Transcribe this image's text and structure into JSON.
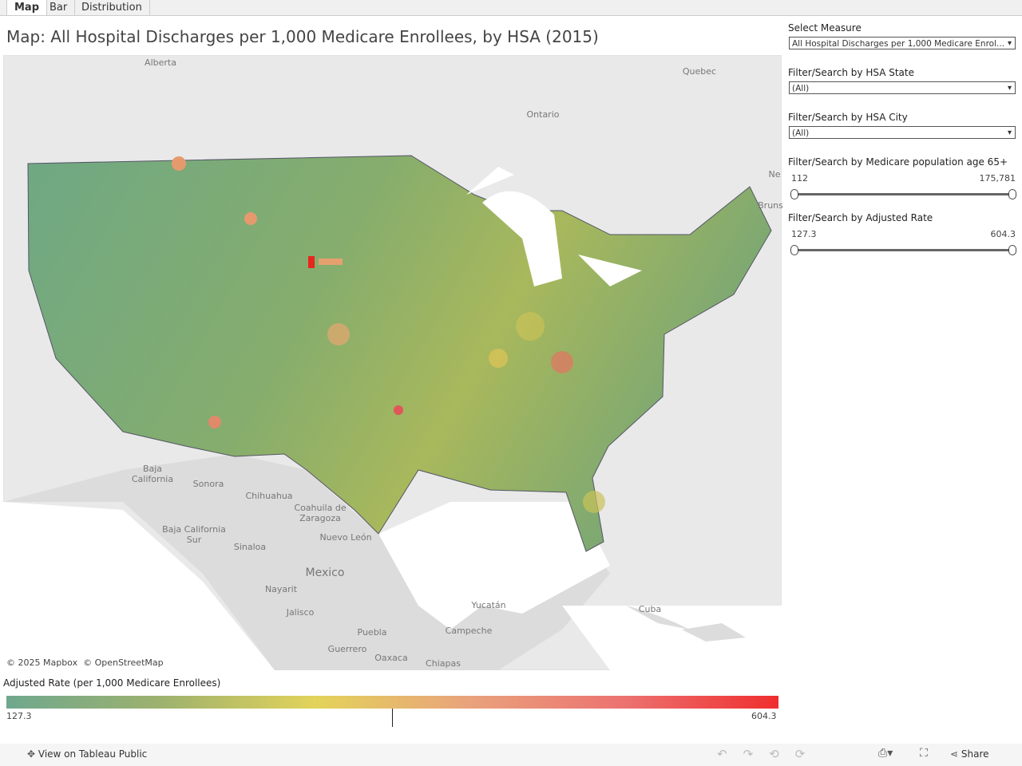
{
  "tabs": [
    "Map",
    "Bar",
    "Distribution"
  ],
  "title": "Map: All Hospital Discharges per 1,000 Medicare Enrollees, by HSA (2015)",
  "map": {
    "labels": [
      "Alberta",
      "Quebec",
      "Ontario",
      "Baja California",
      "Sonora",
      "Chihuahua",
      "Coahuila de Zaragoza",
      "Baja California Sur",
      "Sinaloa",
      "Nuevo León",
      "Mexico",
      "Nayarit",
      "Jalisco",
      "Yucatán",
      "Cuba",
      "Campeche",
      "Puebla",
      "Guerrero",
      "Oaxaca",
      "Chiapas",
      "Ne",
      "Bruns"
    ],
    "attribution": "© 2025 Mapbox  © OpenStreetMap"
  },
  "legend": {
    "title": "Adjusted Rate (per 1,000 Medicare Enrollees)",
    "min": "127.3",
    "max": "604.3"
  },
  "controls": {
    "measure": {
      "label": "Select Measure",
      "value": "All Hospital Discharges per 1,000 Medicare Enrol..."
    },
    "state": {
      "label": "Filter/Search by HSA State",
      "value": "(All)"
    },
    "city": {
      "label": "Filter/Search by HSA City",
      "value": "(All)"
    },
    "population": {
      "label": "Filter/Search by Medicare population age 65+",
      "min": "112",
      "max": "175,781"
    },
    "rate": {
      "label": "Filter/Search by Adjusted Rate",
      "min": "127.3",
      "max": "604.3"
    }
  },
  "footer": {
    "view": "View on Tableau Public",
    "share": "Share"
  }
}
